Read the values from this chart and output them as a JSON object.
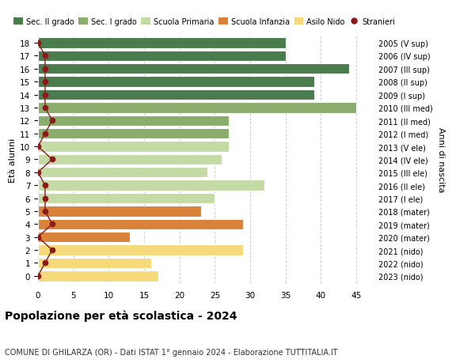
{
  "ages": [
    18,
    17,
    16,
    15,
    14,
    13,
    12,
    11,
    10,
    9,
    8,
    7,
    6,
    5,
    4,
    3,
    2,
    1,
    0
  ],
  "right_labels": [
    "2005 (V sup)",
    "2006 (IV sup)",
    "2007 (III sup)",
    "2008 (II sup)",
    "2009 (I sup)",
    "2010 (III med)",
    "2011 (II med)",
    "2012 (I med)",
    "2013 (V ele)",
    "2014 (IV ele)",
    "2015 (III ele)",
    "2016 (II ele)",
    "2017 (I ele)",
    "2018 (mater)",
    "2019 (mater)",
    "2020 (mater)",
    "2021 (nido)",
    "2022 (nido)",
    "2023 (nido)"
  ],
  "bar_values": [
    35,
    35,
    44,
    39,
    39,
    45,
    27,
    27,
    27,
    26,
    24,
    32,
    25,
    23,
    29,
    13,
    29,
    16,
    17
  ],
  "bar_colors": [
    "#4a7c4e",
    "#4a7c4e",
    "#4a7c4e",
    "#4a7c4e",
    "#4a7c4e",
    "#8aad6e",
    "#8aad6e",
    "#8aad6e",
    "#c5dba5",
    "#c5dba5",
    "#c5dba5",
    "#c5dba5",
    "#c5dba5",
    "#d9823a",
    "#d9823a",
    "#d9823a",
    "#f5d97a",
    "#f5d97a",
    "#f5d97a"
  ],
  "stranieri_values": [
    0,
    1,
    1,
    1,
    1,
    1,
    2,
    1,
    0,
    2,
    0,
    1,
    1,
    1,
    2,
    0,
    2,
    1,
    0
  ],
  "legend_labels": [
    "Sec. II grado",
    "Sec. I grado",
    "Scuola Primaria",
    "Scuola Infanzia",
    "Asilo Nido",
    "Stranieri"
  ],
  "legend_colors": [
    "#4a7c4e",
    "#8aad6e",
    "#c5dba5",
    "#d9823a",
    "#f5d97a",
    "#b22222"
  ],
  "title": "Popolazione per età scolastica - 2024",
  "subtitle": "COMUNE DI GHILARZA (OR) - Dati ISTAT 1° gennaio 2024 - Elaborazione TUTTITALIA.IT",
  "ylabel_left": "Età alunni",
  "ylabel_right": "Anni di nascita",
  "xlim": [
    0,
    47
  ],
  "xticks": [
    0,
    5,
    10,
    15,
    20,
    25,
    30,
    35,
    40,
    45
  ],
  "background_color": "#ffffff",
  "bar_height": 0.82,
  "stranieri_color": "#8b1a1a"
}
